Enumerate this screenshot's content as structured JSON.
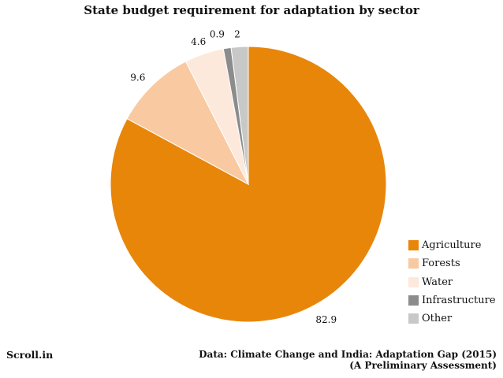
{
  "chart_data": {
    "type": "pie",
    "title": "State budget requirement for adaptation by sector",
    "categories": [
      "Agriculture",
      "Forests",
      "Water",
      "Infrastructure",
      "Other"
    ],
    "values": [
      82.9,
      9.6,
      4.6,
      0.9,
      2
    ],
    "labels": [
      "82.9",
      "9.6",
      "4.6",
      "0.9",
      "2"
    ],
    "colors": [
      "#E8860A",
      "#F9C9A1",
      "#FDE9DC",
      "#8C8C8C",
      "#C8C8C8"
    ],
    "start": "top, clockwise",
    "legend": "bottom-right"
  },
  "footer": {
    "brand": "Scroll.in",
    "source_line1": "Data: Climate Change and India: Adaptation Gap (2015)",
    "source_line2": "(A Preliminary Assessment)"
  }
}
